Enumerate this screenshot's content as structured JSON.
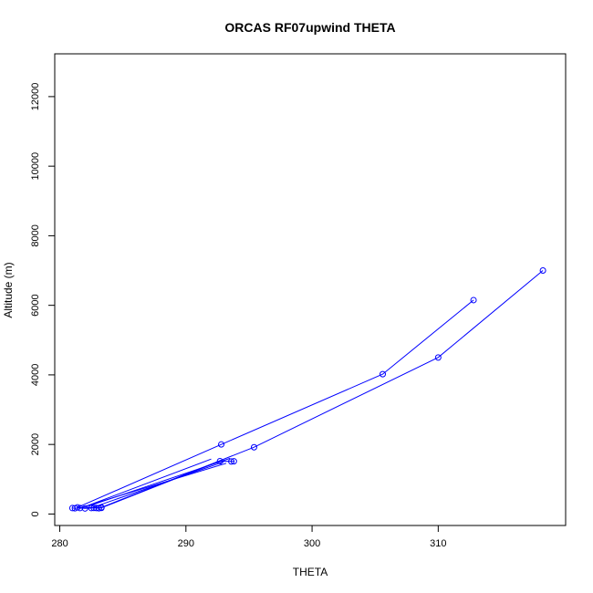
{
  "chart_data": {
    "type": "line",
    "title": "ORCAS RF07upwind THETA",
    "xlabel": "THETA",
    "ylabel": "Altitude (m)",
    "xlim": [
      279.6,
      320.1
    ],
    "ylim": [
      -330,
      13230
    ],
    "x_ticks": [
      280,
      290,
      300,
      310
    ],
    "y_ticks": [
      0,
      2000,
      4000,
      6000,
      8000,
      10000,
      12000
    ],
    "x_tick_labels": [
      "280",
      "290",
      "300",
      "310"
    ],
    "y_tick_labels": [
      "0",
      "2000",
      "4000",
      "6000",
      "8000",
      "10000",
      "12000"
    ],
    "grid": false,
    "series_color": "#0000ff",
    "series": [
      {
        "x": [
          312.8,
          305.6,
          292.8,
          281.4,
          283.3,
          295.4,
          310.0,
          318.3
        ],
        "y": [
          6150,
          4020,
          2000,
          190,
          190,
          1920,
          4500,
          7000
        ],
        "markers": true
      },
      {
        "x": [
          281.0,
          281.2,
          281.6,
          282.0,
          282.5,
          282.7,
          282.9,
          283.1,
          283.3,
          292.7,
          293.6,
          293.8
        ],
        "y": [
          170,
          165,
          170,
          160,
          170,
          175,
          170,
          165,
          175,
          1520,
          1510,
          1515
        ],
        "markers": true
      },
      {
        "x": [
          281.8,
          293.2
        ],
        "y": [
          200,
          1460
        ],
        "markers": false
      },
      {
        "x": [
          282.0,
          292.0
        ],
        "y": [
          210,
          1580
        ],
        "markers": false
      },
      {
        "x": [
          282.3,
          293.5
        ],
        "y": [
          230,
          1600
        ],
        "markers": false
      },
      {
        "x": [
          282.6,
          293.0
        ],
        "y": [
          190,
          1500
        ],
        "markers": false
      }
    ]
  }
}
